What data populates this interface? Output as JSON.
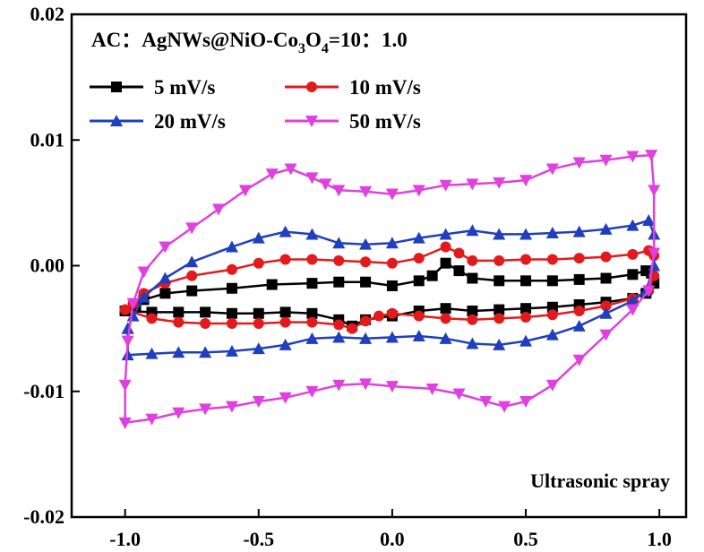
{
  "chart_data": {
    "type": "line",
    "title_parts": {
      "prefix": "AC：AgNWs@NiO-Co",
      "sub1": "3",
      "mid": "O",
      "sub2": "4",
      "suffix": "=10：1.0"
    },
    "annotation": "Ultrasonic spray",
    "xlabel": "",
    "ylabel": "",
    "xlim": [
      -1.2,
      1.1
    ],
    "ylim": [
      -0.02,
      0.02
    ],
    "x_ticks": [
      "-1.0",
      "-0.5",
      "0.0",
      "0.5",
      "1.0"
    ],
    "x_tick_values": [
      -1.0,
      -0.5,
      0.0,
      0.5,
      1.0
    ],
    "y_ticks": [
      "-0.02",
      "-0.01",
      "0.00",
      "0.01",
      "0.02"
    ],
    "y_tick_values": [
      -0.02,
      -0.01,
      0.0,
      0.01,
      0.02
    ],
    "grid": false,
    "legend_position": "top-left",
    "series": [
      {
        "name": "5 mV/s",
        "color": "#000000",
        "marker": "square",
        "points": [
          [
            -1.0,
            -0.0036
          ],
          [
            -0.96,
            -0.0032
          ],
          [
            -0.93,
            -0.0027
          ],
          [
            -0.85,
            -0.0022
          ],
          [
            -0.75,
            -0.002
          ],
          [
            -0.6,
            -0.0018
          ],
          [
            -0.45,
            -0.0015
          ],
          [
            -0.3,
            -0.0014
          ],
          [
            -0.2,
            -0.0013
          ],
          [
            -0.1,
            -0.0013
          ],
          [
            0.0,
            -0.0016
          ],
          [
            0.1,
            -0.0012
          ],
          [
            0.15,
            -0.0008
          ],
          [
            0.2,
            0.0002
          ],
          [
            0.25,
            -0.0004
          ],
          [
            0.3,
            -0.001
          ],
          [
            0.4,
            -0.0012
          ],
          [
            0.5,
            -0.0012
          ],
          [
            0.6,
            -0.0012
          ],
          [
            0.7,
            -0.0011
          ],
          [
            0.8,
            -0.001
          ],
          [
            0.9,
            -0.0007
          ],
          [
            0.95,
            -0.0004
          ],
          [
            0.97,
            -0.0006
          ],
          [
            0.98,
            -0.0014
          ],
          [
            0.95,
            -0.0022
          ],
          [
            0.9,
            -0.0026
          ],
          [
            0.8,
            -0.0029
          ],
          [
            0.7,
            -0.0031
          ],
          [
            0.6,
            -0.0033
          ],
          [
            0.5,
            -0.0034
          ],
          [
            0.4,
            -0.0035
          ],
          [
            0.3,
            -0.0036
          ],
          [
            0.2,
            -0.0034
          ],
          [
            0.1,
            -0.0036
          ],
          [
            0.0,
            -0.004
          ],
          [
            -0.1,
            -0.0043
          ],
          [
            -0.15,
            -0.0048
          ],
          [
            -0.2,
            -0.0043
          ],
          [
            -0.3,
            -0.0038
          ],
          [
            -0.4,
            -0.0037
          ],
          [
            -0.5,
            -0.0038
          ],
          [
            -0.6,
            -0.0038
          ],
          [
            -0.7,
            -0.0037
          ],
          [
            -0.8,
            -0.0037
          ],
          [
            -0.9,
            -0.0037
          ],
          [
            -1.0,
            -0.0036
          ]
        ]
      },
      {
        "name": "10 mV/s",
        "color": "#e31a1c",
        "marker": "circle",
        "points": [
          [
            -1.0,
            -0.0035
          ],
          [
            -0.97,
            -0.003
          ],
          [
            -0.93,
            -0.0022
          ],
          [
            -0.85,
            -0.0014
          ],
          [
            -0.75,
            -0.0008
          ],
          [
            -0.6,
            -0.0003
          ],
          [
            -0.5,
            0.0002
          ],
          [
            -0.4,
            0.0005
          ],
          [
            -0.3,
            0.0005
          ],
          [
            -0.2,
            0.0004
          ],
          [
            -0.1,
            0.0003
          ],
          [
            0.0,
            0.0002
          ],
          [
            0.1,
            0.0006
          ],
          [
            0.2,
            0.0015
          ],
          [
            0.25,
            0.001
          ],
          [
            0.3,
            0.0004
          ],
          [
            0.4,
            0.0004
          ],
          [
            0.5,
            0.0005
          ],
          [
            0.6,
            0.0005
          ],
          [
            0.7,
            0.0006
          ],
          [
            0.8,
            0.0007
          ],
          [
            0.9,
            0.0009
          ],
          [
            0.96,
            0.0012
          ],
          [
            0.98,
            0.0008
          ],
          [
            0.98,
            -0.0008
          ],
          [
            0.96,
            -0.002
          ],
          [
            0.9,
            -0.0026
          ],
          [
            0.8,
            -0.0032
          ],
          [
            0.7,
            -0.0036
          ],
          [
            0.6,
            -0.0039
          ],
          [
            0.5,
            -0.0041
          ],
          [
            0.4,
            -0.0042
          ],
          [
            0.3,
            -0.0043
          ],
          [
            0.2,
            -0.0042
          ],
          [
            0.1,
            -0.004
          ],
          [
            0.0,
            -0.0038
          ],
          [
            -0.05,
            -0.004
          ],
          [
            -0.1,
            -0.0044
          ],
          [
            -0.15,
            -0.005
          ],
          [
            -0.2,
            -0.0047
          ],
          [
            -0.3,
            -0.0045
          ],
          [
            -0.4,
            -0.0045
          ],
          [
            -0.5,
            -0.0046
          ],
          [
            -0.6,
            -0.0046
          ],
          [
            -0.7,
            -0.0046
          ],
          [
            -0.8,
            -0.0045
          ],
          [
            -0.9,
            -0.0042
          ],
          [
            -1.0,
            -0.0035
          ]
        ]
      },
      {
        "name": "20 mV/s",
        "color": "#1f3fbf",
        "marker": "triangle-up",
        "points": [
          [
            -0.99,
            -0.005
          ],
          [
            -0.97,
            -0.004
          ],
          [
            -0.93,
            -0.0025
          ],
          [
            -0.85,
            -0.001
          ],
          [
            -0.75,
            0.0003
          ],
          [
            -0.6,
            0.0015
          ],
          [
            -0.5,
            0.0022
          ],
          [
            -0.4,
            0.0027
          ],
          [
            -0.3,
            0.0025
          ],
          [
            -0.2,
            0.0018
          ],
          [
            -0.1,
            0.0017
          ],
          [
            0.0,
            0.0018
          ],
          [
            0.1,
            0.0022
          ],
          [
            0.2,
            0.0025
          ],
          [
            0.3,
            0.0028
          ],
          [
            0.4,
            0.0025
          ],
          [
            0.5,
            0.0025
          ],
          [
            0.6,
            0.0026
          ],
          [
            0.7,
            0.0027
          ],
          [
            0.8,
            0.0029
          ],
          [
            0.9,
            0.0032
          ],
          [
            0.96,
            0.0036
          ],
          [
            0.98,
            0.0025
          ],
          [
            0.98,
            0.0
          ],
          [
            0.95,
            -0.002
          ],
          [
            0.9,
            -0.0028
          ],
          [
            0.8,
            -0.0038
          ],
          [
            0.7,
            -0.0048
          ],
          [
            0.6,
            -0.0055
          ],
          [
            0.5,
            -0.006
          ],
          [
            0.4,
            -0.0063
          ],
          [
            0.3,
            -0.0062
          ],
          [
            0.2,
            -0.0058
          ],
          [
            0.1,
            -0.0056
          ],
          [
            0.0,
            -0.0057
          ],
          [
            -0.1,
            -0.0058
          ],
          [
            -0.2,
            -0.0057
          ],
          [
            -0.3,
            -0.0058
          ],
          [
            -0.4,
            -0.0063
          ],
          [
            -0.5,
            -0.0066
          ],
          [
            -0.6,
            -0.0068
          ],
          [
            -0.7,
            -0.0069
          ],
          [
            -0.8,
            -0.0069
          ],
          [
            -0.9,
            -0.007
          ],
          [
            -0.99,
            -0.0071
          ],
          [
            -0.99,
            -0.005
          ]
        ]
      },
      {
        "name": "50 mV/s",
        "color": "#e040e0",
        "marker": "triangle-down",
        "points": [
          [
            -1.0,
            -0.0125
          ],
          [
            -1.0,
            -0.0095
          ],
          [
            -0.99,
            -0.006
          ],
          [
            -0.97,
            -0.003
          ],
          [
            -0.93,
            -0.0005
          ],
          [
            -0.85,
            0.0015
          ],
          [
            -0.75,
            0.003
          ],
          [
            -0.65,
            0.0045
          ],
          [
            -0.55,
            0.006
          ],
          [
            -0.45,
            0.0073
          ],
          [
            -0.38,
            0.0077
          ],
          [
            -0.3,
            0.007
          ],
          [
            -0.25,
            0.0065
          ],
          [
            -0.2,
            0.006
          ],
          [
            -0.1,
            0.0059
          ],
          [
            0.0,
            0.0057
          ],
          [
            0.1,
            0.006
          ],
          [
            0.2,
            0.0064
          ],
          [
            0.3,
            0.0065
          ],
          [
            0.4,
            0.0066
          ],
          [
            0.5,
            0.0068
          ],
          [
            0.6,
            0.0077
          ],
          [
            0.7,
            0.0082
          ],
          [
            0.8,
            0.0084
          ],
          [
            0.9,
            0.0087
          ],
          [
            0.97,
            0.0088
          ],
          [
            0.98,
            0.006
          ],
          [
            0.98,
            0.001
          ],
          [
            0.96,
            -0.002
          ],
          [
            0.9,
            -0.0035
          ],
          [
            0.8,
            -0.0055
          ],
          [
            0.7,
            -0.0075
          ],
          [
            0.6,
            -0.0095
          ],
          [
            0.5,
            -0.0108
          ],
          [
            0.42,
            -0.0112
          ],
          [
            0.35,
            -0.0108
          ],
          [
            0.25,
            -0.0102
          ],
          [
            0.15,
            -0.0098
          ],
          [
            0.0,
            -0.0096
          ],
          [
            -0.1,
            -0.0094
          ],
          [
            -0.2,
            -0.0095
          ],
          [
            -0.3,
            -0.01
          ],
          [
            -0.4,
            -0.0105
          ],
          [
            -0.5,
            -0.0108
          ],
          [
            -0.6,
            -0.0112
          ],
          [
            -0.7,
            -0.0114
          ],
          [
            -0.8,
            -0.0117
          ],
          [
            -0.9,
            -0.0122
          ],
          [
            -1.0,
            -0.0125
          ]
        ]
      }
    ]
  }
}
